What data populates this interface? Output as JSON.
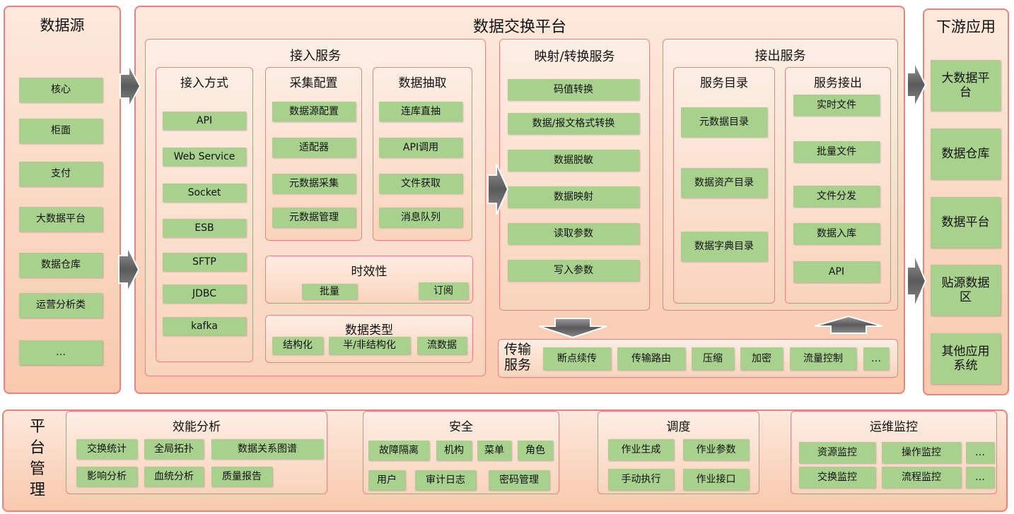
{
  "data_source": {
    "title": "数据源",
    "items": [
      "核心",
      "柜面",
      "支付",
      "大数据平台",
      "数据仓库",
      "运营分析类",
      "…"
    ]
  },
  "platform": {
    "title": "数据交换平台",
    "ingest": {
      "title": "接入服务",
      "columns": [
        {
          "title": "接入方式",
          "items": [
            "API",
            "Web Service",
            "Socket",
            "ESB",
            "SFTP",
            "JDBC",
            "kafka"
          ]
        },
        {
          "title": "采集配置",
          "items": [
            "数据源配置",
            "适配器",
            "元数据采集",
            "元数据管理"
          ]
        },
        {
          "title": "数据抽取",
          "items": [
            "连库直抽",
            "API调用",
            "文件获取",
            "消息队列"
          ]
        }
      ],
      "timeliness": {
        "title": "时效性",
        "items": [
          "批量",
          "订阅"
        ]
      },
      "data_types": {
        "title": "数据类型",
        "items": [
          "结构化",
          "半/非结构化",
          "流数据"
        ]
      }
    },
    "mapping": {
      "title": "映射/转换服务",
      "items": [
        "码值转换",
        "数据/报文格式转换",
        "数据脱敏",
        "数据映射",
        "读取参数",
        "写入参数"
      ]
    },
    "output": {
      "title": "接出服务",
      "catalog": {
        "title": "服务目录",
        "items": [
          "元数据目录",
          "数据资产目录",
          "数据字典目录"
        ]
      },
      "egress": {
        "title": "服务接出",
        "items": [
          "实时文件",
          "批量文件",
          "文件分发",
          "数据入库",
          "API"
        ]
      }
    },
    "transport": {
      "title": "传输服务",
      "items": [
        "断点续传",
        "传输路由",
        "压缩",
        "加密",
        "流量控制",
        "…"
      ]
    }
  },
  "downstream": {
    "title": "下游应用",
    "items": [
      "大数据平台",
      "数据仓库",
      "数据平台",
      "贴源数据区",
      "其他应用系统"
    ]
  },
  "management": {
    "title": "平台管理",
    "groups": [
      {
        "title": "效能分析",
        "items": [
          "交换统计",
          "全局拓扑",
          "数据关系图谱",
          "影响分析",
          "血统分析",
          "质量报告"
        ]
      },
      {
        "title": "安全",
        "items": [
          "故障隔离",
          "机构",
          "菜单",
          "角色",
          "用户",
          "审计日志",
          "密码管理"
        ]
      },
      {
        "title": "调度",
        "items": [
          "作业生成",
          "作业参数",
          "手动执行",
          "作业接口"
        ]
      },
      {
        "title": "运维监控",
        "items": [
          "资源监控",
          "操作监控",
          "…",
          "交换监控",
          "流程监控",
          "…"
        ]
      }
    ]
  }
}
